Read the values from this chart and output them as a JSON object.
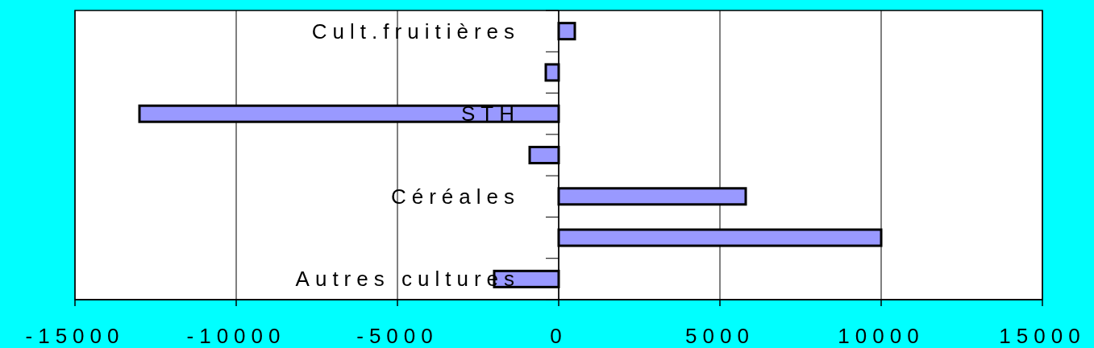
{
  "chart_data": {
    "type": "bar",
    "orientation": "horizontal",
    "categories": [
      "Cult.fruitières",
      null,
      "STH",
      null,
      "Céréales",
      null,
      "Autres cultures"
    ],
    "values": [
      500,
      -400,
      -13000,
      -900,
      5800,
      10000,
      -2000
    ],
    "color": "#9999ff",
    "xlim": [
      -15000,
      15000
    ],
    "xticks": [
      {
        "value": -15000,
        "label": "-15000"
      },
      {
        "value": -10000,
        "label": "-10000"
      },
      {
        "value": -5000,
        "label": "-5000"
      },
      0,
      5000,
      10000,
      15000
    ],
    "grid": "x"
  }
}
